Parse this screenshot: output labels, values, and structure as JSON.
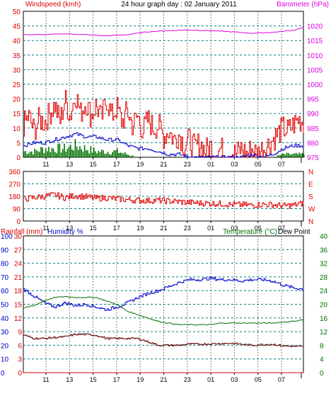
{
  "colors": {
    "red": "#e00000",
    "magenta": "#e000e0",
    "blue": "#0000c8",
    "green": "#007000",
    "dark_red": "#600000",
    "black": "#000000",
    "grid_teal": "#008080",
    "grid_gray": "#808080"
  },
  "chart_data": [
    {
      "id": "wind-baro",
      "type": "line",
      "title": "24 hour graph day : 02 January 2011",
      "left_axis_label": "Windspeed (kmh)",
      "right_axis_label": "Barometer (hPa)",
      "left_ticks": [
        "0",
        "5",
        "10",
        "15",
        "20",
        "25",
        "30",
        "35",
        "40",
        "45",
        "50"
      ],
      "right_ticks": [
        "975",
        "980",
        "985",
        "990",
        "995",
        "1000",
        "1005",
        "1010",
        "1015",
        "1020"
      ],
      "x_ticks": [
        "11",
        "13",
        "15",
        "17",
        "19",
        "21",
        "23",
        "01",
        "03",
        "05",
        "07"
      ],
      "left_range": [
        0,
        50
      ],
      "right_range": [
        975,
        1025
      ],
      "grid": true,
      "series": [
        {
          "key": "gust",
          "color": "red",
          "axis": "left",
          "points": [
            [
              0,
              11
            ],
            [
              0.5,
              14
            ],
            [
              1,
              9
            ],
            [
              1.5,
              13
            ],
            [
              2,
              12
            ],
            [
              2.5,
              15
            ],
            [
              3,
              18
            ],
            [
              3.5,
              12
            ],
            [
              4,
              20
            ],
            [
              4.5,
              14
            ],
            [
              5,
              22
            ],
            [
              5.5,
              15
            ],
            [
              6,
              19
            ],
            [
              6.5,
              14
            ],
            [
              7,
              18
            ],
            [
              7.5,
              13
            ],
            [
              8,
              20
            ],
            [
              8.5,
              14
            ],
            [
              9,
              17
            ],
            [
              9.5,
              12
            ],
            [
              10,
              16
            ],
            [
              10.5,
              11
            ],
            [
              11,
              14
            ],
            [
              11.5,
              9
            ],
            [
              12,
              13
            ],
            [
              12.5,
              10
            ],
            [
              13,
              11
            ],
            [
              13.5,
              7
            ],
            [
              14,
              9
            ],
            [
              14.5,
              6
            ],
            [
              15,
              8
            ],
            [
              15.5,
              4
            ],
            [
              16,
              6
            ],
            [
              16.5,
              3
            ],
            [
              17,
              5
            ],
            [
              17.5,
              2
            ],
            [
              18,
              4
            ],
            [
              18.5,
              1
            ],
            [
              19,
              3
            ],
            [
              19.5,
              1
            ],
            [
              20,
              2
            ],
            [
              20.5,
              1
            ],
            [
              21,
              3
            ],
            [
              21.5,
              1
            ],
            [
              22,
              3
            ],
            [
              22.5,
              1
            ],
            [
              23,
              3
            ],
            [
              23.5,
              4
            ],
            [
              24,
              6
            ],
            [
              24.5,
              8
            ],
            [
              25,
              10
            ],
            [
              25.5,
              9
            ],
            [
              26,
              11
            ],
            [
              26.5,
              13
            ],
            [
              27,
              12
            ]
          ]
        },
        {
          "key": "average",
          "color": "blue",
          "axis": "left",
          "points": [
            [
              0,
              4
            ],
            [
              1,
              5
            ],
            [
              2,
              5
            ],
            [
              3,
              6
            ],
            [
              4,
              7
            ],
            [
              5,
              8
            ],
            [
              6,
              7
            ],
            [
              7,
              7
            ],
            [
              8,
              6
            ],
            [
              9,
              6
            ],
            [
              10,
              4
            ],
            [
              11,
              3
            ],
            [
              12,
              3
            ],
            [
              13,
              2
            ],
            [
              14,
              1
            ],
            [
              15,
              1
            ],
            [
              16,
              0
            ],
            [
              17,
              0
            ],
            [
              18,
              0
            ],
            [
              19,
              0
            ],
            [
              20,
              0
            ],
            [
              21,
              0
            ],
            [
              22,
              1
            ],
            [
              23,
              0
            ],
            [
              24,
              1
            ],
            [
              25,
              3
            ],
            [
              26,
              4
            ],
            [
              27,
              4
            ]
          ]
        },
        {
          "key": "low_bars",
          "color": "green",
          "axis": "left",
          "points": [
            [
              0,
              2
            ],
            [
              1,
              2
            ],
            [
              2,
              3
            ],
            [
              3,
              3
            ],
            [
              4,
              3
            ],
            [
              5,
              4
            ],
            [
              6,
              3
            ],
            [
              7,
              2
            ],
            [
              8,
              2
            ],
            [
              9,
              2
            ],
            [
              10,
              1
            ],
            [
              11,
              0
            ],
            [
              12,
              0
            ],
            [
              13,
              0
            ],
            [
              14,
              0
            ],
            [
              15,
              0
            ],
            [
              16,
              0
            ],
            [
              17,
              0
            ],
            [
              18,
              0
            ],
            [
              19,
              0
            ],
            [
              20,
              0
            ],
            [
              21,
              0
            ],
            [
              22,
              0
            ],
            [
              23,
              0
            ],
            [
              24,
              0
            ],
            [
              25,
              1
            ],
            [
              26,
              1
            ],
            [
              27,
              1
            ]
          ]
        },
        {
          "key": "barometer",
          "color": "magenta",
          "axis": "right",
          "points": [
            [
              0,
              1017
            ],
            [
              2,
              1017
            ],
            [
              4,
              1017.3
            ],
            [
              6,
              1017
            ],
            [
              8,
              1016.6
            ],
            [
              10,
              1017
            ],
            [
              12,
              1018
            ],
            [
              14,
              1018.4
            ],
            [
              16,
              1018.6
            ],
            [
              18,
              1018.4
            ],
            [
              20,
              1018
            ],
            [
              22,
              1017.5
            ],
            [
              24,
              1017.8
            ],
            [
              26,
              1018.5
            ],
            [
              27,
              1019.5
            ]
          ]
        }
      ]
    },
    {
      "id": "direction",
      "type": "line",
      "left_ticks": [
        "0",
        "90",
        "180",
        "270",
        "360"
      ],
      "right_ticks": [
        "N",
        "W",
        "S",
        "E",
        "N"
      ],
      "x_ticks": [
        "11",
        "13",
        "15",
        "17",
        "19",
        "21",
        "23",
        "01",
        "03",
        "05",
        "07"
      ],
      "left_range": [
        0,
        360
      ],
      "grid": true,
      "series": [
        {
          "key": "direction",
          "color": "red",
          "points": [
            [
              0,
              160
            ],
            [
              1,
              170
            ],
            [
              2,
              180
            ],
            [
              3,
              190
            ],
            [
              4,
              170
            ],
            [
              5,
              185
            ],
            [
              6,
              175
            ],
            [
              7,
              165
            ],
            [
              8,
              170
            ],
            [
              9,
              160
            ],
            [
              10,
              155
            ],
            [
              11,
              150
            ],
            [
              12,
              148
            ],
            [
              13,
              150
            ],
            [
              14,
              145
            ],
            [
              15,
              140
            ],
            [
              16,
              135
            ],
            [
              17,
              130
            ],
            [
              18,
              128
            ],
            [
              19,
              125
            ],
            [
              20,
              120
            ],
            [
              21,
              118
            ],
            [
              22,
              115
            ],
            [
              23,
              120
            ],
            [
              24,
              118
            ],
            [
              25,
              110
            ],
            [
              26,
              115
            ],
            [
              27,
              130
            ]
          ]
        }
      ]
    },
    {
      "id": "temp-hum",
      "type": "line",
      "left_axis_label": "Rainfall (mm)",
      "humidity_label": "Humidity %",
      "right_axis_label": "Temperature (°C)",
      "dew_label": "Dew Point",
      "rain_ticks": [
        "0",
        "3",
        "6",
        "9",
        "12",
        "15",
        "18",
        "21",
        "24",
        "27",
        "30"
      ],
      "humidity_ticks": [
        "0",
        "10",
        "20",
        "30",
        "40",
        "50",
        "60",
        "70",
        "80",
        "90",
        "100"
      ],
      "right_ticks": [
        "0",
        "4",
        "8",
        "12",
        "16",
        "20",
        "24",
        "28",
        "32",
        "36",
        "40"
      ],
      "x_ticks": [
        "11",
        "13",
        "15",
        "17",
        "19",
        "21",
        "23",
        "01",
        "03",
        "05",
        "07"
      ],
      "humidity_range": [
        0,
        100
      ],
      "right_range": [
        0,
        40
      ],
      "grid": true,
      "series": [
        {
          "key": "humidity",
          "color": "blue",
          "axis": "humidity",
          "points": [
            [
              0,
              61
            ],
            [
              1,
              56
            ],
            [
              2,
              51
            ],
            [
              3,
              48
            ],
            [
              4,
              51
            ],
            [
              5,
              49
            ],
            [
              6,
              50
            ],
            [
              7,
              48
            ],
            [
              8,
              46
            ],
            [
              9,
              48
            ],
            [
              10,
              51
            ],
            [
              11,
              55
            ],
            [
              12,
              58
            ],
            [
              13,
              60
            ],
            [
              14,
              63
            ],
            [
              15,
              66
            ],
            [
              16,
              68
            ],
            [
              17,
              68
            ],
            [
              18,
              69
            ],
            [
              19,
              68
            ],
            [
              20,
              68
            ],
            [
              21,
              67
            ],
            [
              22,
              68
            ],
            [
              23,
              68
            ],
            [
              24,
              67
            ],
            [
              25,
              64
            ],
            [
              26,
              62
            ],
            [
              27,
              61
            ]
          ]
        },
        {
          "key": "temperature",
          "color": "green",
          "axis": "right",
          "points": [
            [
              0,
              19
            ],
            [
              1,
              19.5
            ],
            [
              2,
              21
            ],
            [
              3,
              22
            ],
            [
              4,
              22.2
            ],
            [
              5,
              22
            ],
            [
              6,
              22
            ],
            [
              7,
              22
            ],
            [
              8,
              21
            ],
            [
              9,
              20
            ],
            [
              10,
              18
            ],
            [
              11,
              17
            ],
            [
              12,
              16
            ],
            [
              13,
              15
            ],
            [
              14,
              14.5
            ],
            [
              15,
              14
            ],
            [
              16,
              14
            ],
            [
              17,
              14
            ],
            [
              18,
              14
            ],
            [
              19,
              14.5
            ],
            [
              20,
              14.5
            ],
            [
              21,
              14.5
            ],
            [
              22,
              14.5
            ],
            [
              23,
              14.5
            ],
            [
              24,
              14.5
            ],
            [
              25,
              14.8
            ],
            [
              26,
              15
            ],
            [
              27,
              15.5
            ]
          ]
        },
        {
          "key": "dew_point",
          "color": "dark_red",
          "axis": "right",
          "points": [
            [
              0,
              11
            ],
            [
              1,
              10
            ],
            [
              2,
              10
            ],
            [
              3,
              10.3
            ],
            [
              4,
              10.5
            ],
            [
              5,
              11.2
            ],
            [
              6,
              11.2
            ],
            [
              7,
              10.9
            ],
            [
              8,
              10
            ],
            [
              9,
              10
            ],
            [
              10,
              10
            ],
            [
              11,
              10
            ],
            [
              12,
              9
            ],
            [
              13,
              8
            ],
            [
              14,
              8
            ],
            [
              15,
              8
            ],
            [
              16,
              8.4
            ],
            [
              17,
              8.3
            ],
            [
              18,
              8.4
            ],
            [
              19,
              8.5
            ],
            [
              20,
              8.6
            ],
            [
              21,
              8.3
            ],
            [
              22,
              8
            ],
            [
              23,
              8.2
            ],
            [
              24,
              8.3
            ],
            [
              25,
              7.8
            ],
            [
              26,
              7.7
            ],
            [
              27,
              7.6
            ]
          ]
        },
        {
          "key": "rainfall",
          "color": "red",
          "axis": "rain",
          "points": [
            [
              0,
              0
            ],
            [
              27,
              0
            ]
          ]
        }
      ]
    }
  ]
}
